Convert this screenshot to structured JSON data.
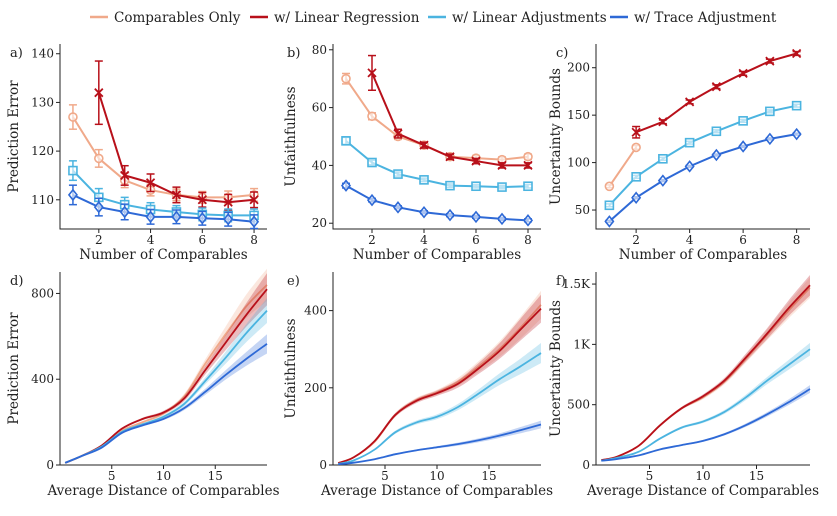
{
  "legend": {
    "items": [
      {
        "label": "Comparables Only",
        "color": "#f0a98a"
      },
      {
        "label": "w/ Linear Regression",
        "color": "#b8101a"
      },
      {
        "label": "w/ Linear Adjustments",
        "color": "#4bb4e0"
      },
      {
        "label": "w/ Trace Adjustment",
        "color": "#2e69d6"
      }
    ]
  },
  "chart_data": [
    {
      "type": "line",
      "panel": "a)",
      "xlabel": "Number of Comparables",
      "ylabel": "Prediction Error",
      "xlim": [
        0.5,
        8.5
      ],
      "ylim": [
        104,
        142
      ],
      "xticks": [
        2,
        4,
        6,
        8
      ],
      "yticks": [
        110,
        120,
        130,
        140
      ],
      "series": [
        {
          "name": "Comparables Only",
          "marker": "circle",
          "color": "#f0a98a",
          "x": [
            1,
            2,
            3,
            4,
            5,
            6,
            7,
            8
          ],
          "y": [
            127,
            118.5,
            114,
            112,
            111,
            110.5,
            110.5,
            111
          ],
          "err": [
            2.5,
            1.8,
            1.5,
            1.2,
            1.2,
            1.2,
            1.3,
            1.3
          ]
        },
        {
          "name": "w/ Linear Regression",
          "marker": "x",
          "color": "#b8101a",
          "x": [
            2,
            3,
            4,
            5,
            6,
            7,
            8
          ],
          "y": [
            132,
            115,
            113.5,
            111,
            110,
            109.5,
            110
          ],
          "err": [
            6.5,
            2,
            1.8,
            1.6,
            1.5,
            1.6,
            1.6
          ]
        },
        {
          "name": "w/ Linear Adjustments",
          "marker": "square",
          "color": "#4bb4e0",
          "x": [
            1,
            2,
            3,
            4,
            5,
            6,
            7,
            8
          ],
          "y": [
            116,
            110.5,
            109,
            108,
            107.5,
            107,
            106.8,
            106.8
          ],
          "err": [
            2,
            1.8,
            1.5,
            1.4,
            1.3,
            1.3,
            1.3,
            1.3
          ]
        },
        {
          "name": "w/ Trace Adjustment",
          "marker": "diamond",
          "color": "#2e69d6",
          "x": [
            1,
            2,
            3,
            4,
            5,
            6,
            7,
            8
          ],
          "y": [
            111,
            108.5,
            107.5,
            106.5,
            106.5,
            106.2,
            106,
            105.5
          ],
          "err": [
            2,
            1.8,
            1.6,
            1.5,
            1.4,
            1.4,
            1.4,
            1.4
          ]
        }
      ]
    },
    {
      "type": "line",
      "panel": "b)",
      "xlabel": "Number of Comparables",
      "ylabel": "Unfaithfulness",
      "xlim": [
        0.5,
        8.5
      ],
      "ylim": [
        18,
        82
      ],
      "xticks": [
        2,
        4,
        6,
        8
      ],
      "yticks": [
        20,
        40,
        60,
        80
      ],
      "series": [
        {
          "name": "Comparables Only",
          "marker": "circle",
          "color": "#f0a98a",
          "x": [
            1,
            2,
            3,
            4,
            5,
            6,
            7,
            8
          ],
          "y": [
            70,
            57,
            50,
            47,
            43,
            42.5,
            42,
            43
          ],
          "err": [
            1.8,
            1.2,
            1,
            1,
            0.9,
            0.9,
            0.9,
            0.9
          ]
        },
        {
          "name": "w/ Linear Regression",
          "marker": "x",
          "color": "#b8101a",
          "x": [
            2,
            3,
            4,
            5,
            6,
            7,
            8
          ],
          "y": [
            72,
            51,
            47,
            43,
            41.5,
            40,
            40
          ],
          "err": [
            6,
            1.5,
            1,
            0.9,
            0.9,
            0.9,
            0.9
          ]
        },
        {
          "name": "w/ Linear Adjustments",
          "marker": "square",
          "color": "#4bb4e0",
          "x": [
            1,
            2,
            3,
            4,
            5,
            6,
            7,
            8
          ],
          "y": [
            48.5,
            41,
            37,
            35,
            33,
            32.8,
            32.5,
            32.8
          ],
          "err": [
            1.2,
            0.8,
            0.7,
            0.6,
            0.6,
            0.6,
            0.6,
            0.6
          ]
        },
        {
          "name": "w/ Trace Adjustment",
          "marker": "diamond",
          "color": "#2e69d6",
          "x": [
            1,
            2,
            3,
            4,
            5,
            6,
            7,
            8
          ],
          "y": [
            33,
            28,
            25.5,
            23.8,
            22.8,
            22.2,
            21.5,
            21
          ],
          "err": [
            0.8,
            0.6,
            0.5,
            0.5,
            0.5,
            0.5,
            0.5,
            0.5
          ]
        }
      ]
    },
    {
      "type": "line",
      "panel": "c)",
      "xlabel": "Number of Comparables",
      "ylabel": "Uncertainty Bounds",
      "xlim": [
        0.5,
        8.5
      ],
      "ylim": [
        30,
        225
      ],
      "xticks": [
        2,
        4,
        6,
        8
      ],
      "yticks": [
        50,
        100,
        150,
        200
      ],
      "series": [
        {
          "name": "Comparables Only",
          "marker": "circle",
          "color": "#f0a98a",
          "x": [
            1,
            2
          ],
          "y": [
            75,
            116
          ],
          "err": [
            1.5,
            2
          ]
        },
        {
          "name": "w/ Linear Regression",
          "marker": "x",
          "color": "#b8101a",
          "x": [
            2,
            3,
            4,
            5,
            6,
            7,
            8
          ],
          "y": [
            132,
            143,
            164,
            180,
            194,
            207,
            215
          ],
          "err": [
            6,
            2,
            2,
            2,
            2,
            2,
            2
          ]
        },
        {
          "name": "w/ Linear Adjustments",
          "marker": "square",
          "color": "#4bb4e0",
          "x": [
            1,
            2,
            3,
            4,
            5,
            6,
            7,
            8
          ],
          "y": [
            55,
            85,
            104,
            121,
            133,
            144,
            154,
            160
          ],
          "err": [
            1.5,
            1.5,
            1.5,
            1.5,
            1.5,
            1.5,
            1.5,
            1.5
          ]
        },
        {
          "name": "w/ Trace Adjustment",
          "marker": "diamond",
          "color": "#2e69d6",
          "x": [
            1,
            2,
            3,
            4,
            5,
            6,
            7,
            8
          ],
          "y": [
            38,
            63,
            81,
            96,
            108,
            117,
            125,
            130
          ],
          "err": [
            1,
            1,
            1,
            1,
            1,
            1,
            1,
            1
          ]
        }
      ]
    },
    {
      "type": "area",
      "panel": "d)",
      "xlabel": "Average Distance of Comparables",
      "ylabel": "Prediction Error",
      "xlim": [
        0,
        20
      ],
      "ylim": [
        0,
        900
      ],
      "xticks": [
        5,
        10,
        15
      ],
      "yticks": [
        0,
        400,
        800
      ],
      "series": [
        {
          "name": "Comparables Only",
          "color": "#f0a98a",
          "x": [
            0.5,
            2,
            4,
            6,
            8,
            10,
            12,
            14,
            16,
            18,
            20
          ],
          "y": [
            10,
            40,
            85,
            160,
            200,
            240,
            320,
            470,
            610,
            740,
            840
          ],
          "band": [
            0,
            0,
            2,
            5,
            6,
            8,
            12,
            20,
            35,
            55,
            75
          ]
        },
        {
          "name": "w/ Linear Regression",
          "color": "#b8101a",
          "x": [
            0.5,
            2,
            4,
            6,
            8,
            10,
            12,
            14,
            16,
            18,
            20
          ],
          "y": [
            10,
            40,
            90,
            170,
            215,
            245,
            310,
            440,
            570,
            700,
            820
          ],
          "band": [
            0,
            0,
            2,
            5,
            6,
            8,
            12,
            20,
            35,
            55,
            75
          ]
        },
        {
          "name": "w/ Linear Adjustments",
          "color": "#4bb4e0",
          "x": [
            0.5,
            2,
            4,
            6,
            8,
            10,
            12,
            14,
            16,
            18,
            20
          ],
          "y": [
            10,
            40,
            85,
            155,
            190,
            225,
            285,
            390,
            500,
            615,
            720
          ],
          "band": [
            0,
            0,
            2,
            4,
            5,
            7,
            10,
            16,
            28,
            42,
            58
          ]
        },
        {
          "name": "w/ Trace Adjustment",
          "color": "#2e69d6",
          "x": [
            0.5,
            2,
            4,
            6,
            8,
            10,
            12,
            14,
            16,
            18,
            20
          ],
          "y": [
            10,
            40,
            80,
            150,
            185,
            215,
            265,
            340,
            420,
            495,
            565
          ],
          "band": [
            0,
            0,
            2,
            4,
            5,
            6,
            9,
            14,
            22,
            32,
            45
          ]
        }
      ]
    },
    {
      "type": "area",
      "panel": "e)",
      "xlabel": "Average Distance of Comparables",
      "ylabel": "Unfaithfulness",
      "xlim": [
        0,
        20
      ],
      "ylim": [
        0,
        500
      ],
      "xticks": [
        5,
        10,
        15
      ],
      "yticks": [
        0,
        200,
        400
      ],
      "series": [
        {
          "name": "Comparables Only",
          "color": "#f0a98a",
          "x": [
            0.5,
            2,
            4,
            6,
            8,
            10,
            12,
            14,
            16,
            18,
            20
          ],
          "y": [
            5,
            20,
            60,
            130,
            168,
            188,
            215,
            255,
            300,
            355,
            415
          ],
          "band": [
            0,
            1,
            3,
            5,
            6,
            7,
            10,
            14,
            20,
            28,
            36
          ]
        },
        {
          "name": "w/ Linear Regression",
          "color": "#b8101a",
          "x": [
            0.5,
            2,
            4,
            6,
            8,
            10,
            12,
            14,
            16,
            18,
            20
          ],
          "y": [
            5,
            20,
            62,
            130,
            166,
            186,
            210,
            250,
            295,
            350,
            405
          ],
          "band": [
            0,
            1,
            3,
            5,
            6,
            7,
            10,
            14,
            20,
            28,
            36
          ]
        },
        {
          "name": "w/ Linear Adjustments",
          "color": "#4bb4e0",
          "x": [
            0.5,
            2,
            4,
            6,
            8,
            10,
            12,
            14,
            16,
            18,
            20
          ],
          "y": [
            3,
            12,
            40,
            85,
            110,
            125,
            150,
            185,
            222,
            255,
            290
          ],
          "band": [
            0,
            1,
            2,
            4,
            5,
            6,
            8,
            11,
            15,
            20,
            26
          ]
        },
        {
          "name": "w/ Trace Adjustment",
          "color": "#2e69d6",
          "x": [
            0.5,
            2,
            4,
            6,
            8,
            10,
            12,
            14,
            16,
            18,
            20
          ],
          "y": [
            2,
            6,
            15,
            28,
            38,
            46,
            54,
            64,
            76,
            90,
            105
          ],
          "band": [
            0,
            1,
            1,
            2,
            2,
            3,
            4,
            5,
            6,
            8,
            10
          ]
        }
      ]
    },
    {
      "type": "area",
      "panel": "f)",
      "xlabel": "Average Distance of Comparables",
      "ylabel": "Uncertainty Bounds",
      "xlim": [
        0,
        20
      ],
      "ylim": [
        0,
        1600
      ],
      "xticks": [
        5,
        10,
        15
      ],
      "yticks": [
        0,
        500,
        1000,
        1500
      ],
      "ytick_labels": [
        "0",
        "500",
        "1K",
        "1.5K"
      ],
      "series": [
        {
          "name": "Comparables Only",
          "color": "#f0a98a",
          "x": [
            0.5,
            2,
            4,
            6,
            8,
            10,
            12,
            14,
            16,
            18,
            20
          ],
          "y": [
            40,
            70,
            160,
            330,
            470,
            560,
            690,
            880,
            1080,
            1280,
            1470
          ],
          "band": [
            0,
            2,
            5,
            10,
            12,
            15,
            22,
            32,
            45,
            65,
            85
          ]
        },
        {
          "name": "w/ Linear Regression",
          "color": "#b8101a",
          "x": [
            0.5,
            2,
            4,
            6,
            8,
            10,
            12,
            14,
            16,
            18,
            20
          ],
          "y": [
            40,
            70,
            160,
            330,
            470,
            570,
            700,
            890,
            1090,
            1300,
            1490
          ],
          "band": [
            0,
            2,
            5,
            10,
            12,
            15,
            22,
            32,
            45,
            65,
            85
          ]
        },
        {
          "name": "w/ Linear Adjustments",
          "color": "#4bb4e0",
          "x": [
            0.5,
            2,
            4,
            6,
            8,
            10,
            12,
            14,
            16,
            18,
            20
          ],
          "y": [
            35,
            60,
            110,
            220,
            310,
            360,
            440,
            560,
            700,
            830,
            960
          ],
          "band": [
            0,
            2,
            4,
            8,
            10,
            12,
            16,
            22,
            30,
            40,
            52
          ]
        },
        {
          "name": "w/ Trace Adjustment",
          "color": "#2e69d6",
          "x": [
            0.5,
            2,
            4,
            6,
            8,
            10,
            12,
            14,
            16,
            18,
            20
          ],
          "y": [
            35,
            50,
            80,
            130,
            165,
            200,
            255,
            330,
            420,
            520,
            630
          ],
          "band": [
            0,
            2,
            3,
            5,
            6,
            8,
            10,
            14,
            18,
            24,
            32
          ]
        }
      ]
    }
  ]
}
